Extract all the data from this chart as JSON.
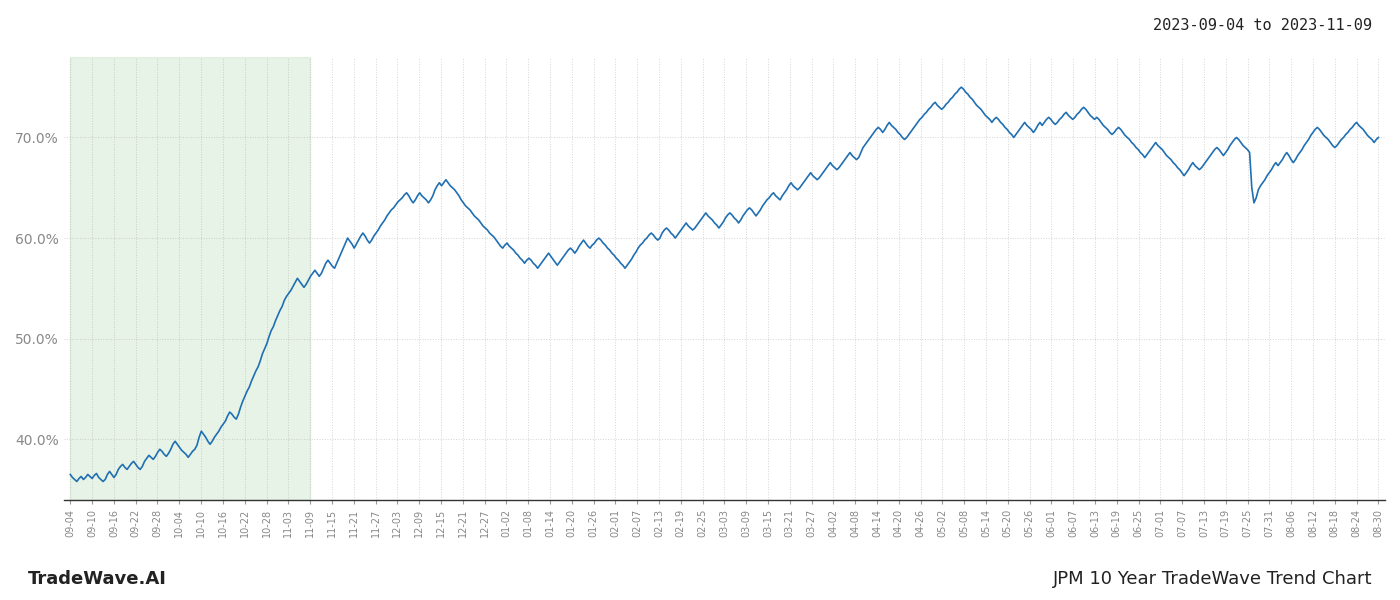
{
  "title_top_right": "2023-09-04 to 2023-11-09",
  "title_bottom_left": "TradeWave.AI",
  "title_bottom_right": "JPM 10 Year TradeWave Trend Chart",
  "line_color": "#1f6fb2",
  "line_width": 1.2,
  "shaded_color": "#c8e6c9",
  "shaded_alpha": 0.45,
  "ylim": [
    34.0,
    78.0
  ],
  "yticks": [
    40.0,
    50.0,
    60.0,
    70.0
  ],
  "background_color": "#ffffff",
  "grid_color": "#aaaaaa",
  "grid_alpha": 0.5,
  "grid_linestyle": ":",
  "x_labels": [
    "09-04",
    "09-10",
    "09-16",
    "09-22",
    "09-28",
    "10-04",
    "10-10",
    "10-16",
    "10-22",
    "10-28",
    "11-03",
    "11-09",
    "11-15",
    "11-21",
    "11-27",
    "12-03",
    "12-09",
    "12-15",
    "12-21",
    "12-27",
    "01-02",
    "01-08",
    "01-14",
    "01-20",
    "01-26",
    "02-01",
    "02-07",
    "02-13",
    "02-19",
    "02-25",
    "03-03",
    "03-09",
    "03-15",
    "03-21",
    "03-27",
    "04-02",
    "04-08",
    "04-14",
    "04-20",
    "04-26",
    "05-02",
    "05-08",
    "05-14",
    "05-20",
    "05-26",
    "06-01",
    "06-07",
    "06-13",
    "06-19",
    "06-25",
    "07-01",
    "07-07",
    "07-13",
    "07-19",
    "07-25",
    "07-31",
    "08-06",
    "08-12",
    "08-18",
    "08-24",
    "08-30"
  ],
  "shaded_start_label": "09-04",
  "shaded_end_label": "11-09",
  "y_values": [
    36.5,
    36.2,
    36.0,
    35.8,
    36.1,
    36.3,
    36.0,
    36.2,
    36.5,
    36.3,
    36.1,
    36.4,
    36.6,
    36.2,
    36.0,
    35.8,
    36.0,
    36.5,
    36.8,
    36.5,
    36.2,
    36.5,
    37.0,
    37.3,
    37.5,
    37.2,
    37.0,
    37.3,
    37.6,
    37.8,
    37.5,
    37.2,
    37.0,
    37.3,
    37.8,
    38.1,
    38.4,
    38.2,
    38.0,
    38.3,
    38.7,
    39.0,
    38.8,
    38.5,
    38.3,
    38.6,
    39.0,
    39.5,
    39.8,
    39.5,
    39.2,
    38.9,
    38.7,
    38.5,
    38.2,
    38.5,
    38.8,
    39.0,
    39.4,
    40.2,
    40.8,
    40.5,
    40.2,
    39.8,
    39.5,
    39.8,
    40.2,
    40.5,
    40.8,
    41.2,
    41.5,
    41.8,
    42.3,
    42.7,
    42.5,
    42.2,
    42.0,
    42.5,
    43.2,
    43.8,
    44.3,
    44.8,
    45.2,
    45.8,
    46.3,
    46.8,
    47.2,
    47.8,
    48.5,
    49.0,
    49.5,
    50.2,
    50.8,
    51.2,
    51.8,
    52.3,
    52.8,
    53.2,
    53.8,
    54.2,
    54.5,
    54.8,
    55.2,
    55.6,
    56.0,
    55.7,
    55.4,
    55.1,
    55.4,
    55.8,
    56.2,
    56.5,
    56.8,
    56.5,
    56.2,
    56.5,
    57.0,
    57.5,
    57.8,
    57.5,
    57.2,
    57.0,
    57.5,
    58.0,
    58.5,
    59.0,
    59.5,
    60.0,
    59.7,
    59.4,
    59.0,
    59.4,
    59.8,
    60.2,
    60.5,
    60.2,
    59.8,
    59.5,
    59.8,
    60.2,
    60.5,
    60.8,
    61.2,
    61.5,
    61.8,
    62.2,
    62.5,
    62.8,
    63.0,
    63.3,
    63.6,
    63.8,
    64.0,
    64.3,
    64.5,
    64.2,
    63.8,
    63.5,
    63.8,
    64.2,
    64.5,
    64.2,
    64.0,
    63.8,
    63.5,
    63.8,
    64.2,
    64.8,
    65.2,
    65.5,
    65.2,
    65.5,
    65.8,
    65.5,
    65.2,
    65.0,
    64.8,
    64.5,
    64.2,
    63.8,
    63.5,
    63.2,
    63.0,
    62.8,
    62.5,
    62.2,
    62.0,
    61.8,
    61.5,
    61.2,
    61.0,
    60.8,
    60.5,
    60.3,
    60.1,
    59.8,
    59.5,
    59.2,
    59.0,
    59.3,
    59.5,
    59.2,
    59.0,
    58.8,
    58.5,
    58.3,
    58.0,
    57.8,
    57.5,
    57.8,
    58.0,
    57.8,
    57.5,
    57.3,
    57.0,
    57.3,
    57.6,
    57.9,
    58.2,
    58.5,
    58.2,
    57.9,
    57.6,
    57.3,
    57.6,
    57.9,
    58.2,
    58.5,
    58.8,
    59.0,
    58.8,
    58.5,
    58.8,
    59.2,
    59.5,
    59.8,
    59.5,
    59.2,
    59.0,
    59.3,
    59.5,
    59.8,
    60.0,
    59.8,
    59.5,
    59.3,
    59.0,
    58.8,
    58.5,
    58.3,
    58.0,
    57.8,
    57.5,
    57.3,
    57.0,
    57.3,
    57.6,
    57.9,
    58.3,
    58.6,
    59.0,
    59.3,
    59.5,
    59.8,
    60.0,
    60.3,
    60.5,
    60.3,
    60.0,
    59.8,
    60.0,
    60.5,
    60.8,
    61.0,
    60.8,
    60.5,
    60.3,
    60.0,
    60.3,
    60.6,
    60.9,
    61.2,
    61.5,
    61.2,
    61.0,
    60.8,
    61.0,
    61.3,
    61.6,
    61.9,
    62.2,
    62.5,
    62.2,
    62.0,
    61.8,
    61.5,
    61.3,
    61.0,
    61.3,
    61.6,
    62.0,
    62.3,
    62.5,
    62.3,
    62.0,
    61.8,
    61.5,
    61.8,
    62.2,
    62.5,
    62.8,
    63.0,
    62.8,
    62.5,
    62.2,
    62.5,
    62.8,
    63.2,
    63.5,
    63.8,
    64.0,
    64.3,
    64.5,
    64.2,
    64.0,
    63.8,
    64.2,
    64.5,
    64.8,
    65.2,
    65.5,
    65.2,
    65.0,
    64.8,
    65.0,
    65.3,
    65.6,
    65.9,
    66.2,
    66.5,
    66.2,
    66.0,
    65.8,
    66.0,
    66.3,
    66.6,
    66.9,
    67.2,
    67.5,
    67.2,
    67.0,
    66.8,
    67.0,
    67.3,
    67.6,
    67.9,
    68.2,
    68.5,
    68.2,
    68.0,
    67.8,
    68.0,
    68.5,
    69.0,
    69.3,
    69.6,
    69.9,
    70.2,
    70.5,
    70.8,
    71.0,
    70.8,
    70.5,
    70.8,
    71.2,
    71.5,
    71.2,
    71.0,
    70.8,
    70.5,
    70.3,
    70.0,
    69.8,
    70.0,
    70.3,
    70.6,
    70.9,
    71.2,
    71.5,
    71.8,
    72.0,
    72.3,
    72.5,
    72.8,
    73.0,
    73.3,
    73.5,
    73.2,
    73.0,
    72.8,
    73.0,
    73.3,
    73.5,
    73.8,
    74.0,
    74.3,
    74.5,
    74.8,
    75.0,
    74.8,
    74.5,
    74.3,
    74.0,
    73.8,
    73.5,
    73.2,
    73.0,
    72.8,
    72.5,
    72.2,
    72.0,
    71.8,
    71.5,
    71.8,
    72.0,
    71.8,
    71.5,
    71.3,
    71.0,
    70.8,
    70.5,
    70.3,
    70.0,
    70.3,
    70.6,
    70.9,
    71.2,
    71.5,
    71.2,
    71.0,
    70.8,
    70.5,
    70.8,
    71.2,
    71.5,
    71.2,
    71.5,
    71.8,
    72.0,
    71.8,
    71.5,
    71.3,
    71.5,
    71.8,
    72.0,
    72.3,
    72.5,
    72.2,
    72.0,
    71.8,
    72.0,
    72.3,
    72.5,
    72.8,
    73.0,
    72.8,
    72.5,
    72.2,
    72.0,
    71.8,
    72.0,
    71.8,
    71.5,
    71.2,
    71.0,
    70.8,
    70.5,
    70.3,
    70.5,
    70.8,
    71.0,
    70.8,
    70.5,
    70.2,
    70.0,
    69.8,
    69.5,
    69.3,
    69.0,
    68.8,
    68.5,
    68.3,
    68.0,
    68.3,
    68.6,
    68.9,
    69.2,
    69.5,
    69.2,
    69.0,
    68.8,
    68.5,
    68.2,
    68.0,
    67.8,
    67.5,
    67.3,
    67.0,
    66.8,
    66.5,
    66.2,
    66.5,
    66.8,
    67.2,
    67.5,
    67.2,
    67.0,
    66.8,
    67.0,
    67.3,
    67.6,
    67.9,
    68.2,
    68.5,
    68.8,
    69.0,
    68.8,
    68.5,
    68.2,
    68.5,
    68.8,
    69.2,
    69.5,
    69.8,
    70.0,
    69.8,
    69.5,
    69.2,
    69.0,
    68.8,
    68.5,
    65.0,
    63.5,
    64.0,
    64.8,
    65.2,
    65.5,
    65.8,
    66.2,
    66.5,
    66.8,
    67.2,
    67.5,
    67.2,
    67.5,
    67.8,
    68.2,
    68.5,
    68.2,
    67.8,
    67.5,
    67.8,
    68.2,
    68.5,
    68.8,
    69.2,
    69.5,
    69.8,
    70.2,
    70.5,
    70.8,
    71.0,
    70.8,
    70.5,
    70.2,
    70.0,
    69.8,
    69.5,
    69.2,
    69.0,
    69.2,
    69.5,
    69.8,
    70.0,
    70.3,
    70.5,
    70.8,
    71.0,
    71.3,
    71.5,
    71.2,
    71.0,
    70.8,
    70.5,
    70.2,
    70.0,
    69.8,
    69.5,
    69.8,
    70.0
  ]
}
